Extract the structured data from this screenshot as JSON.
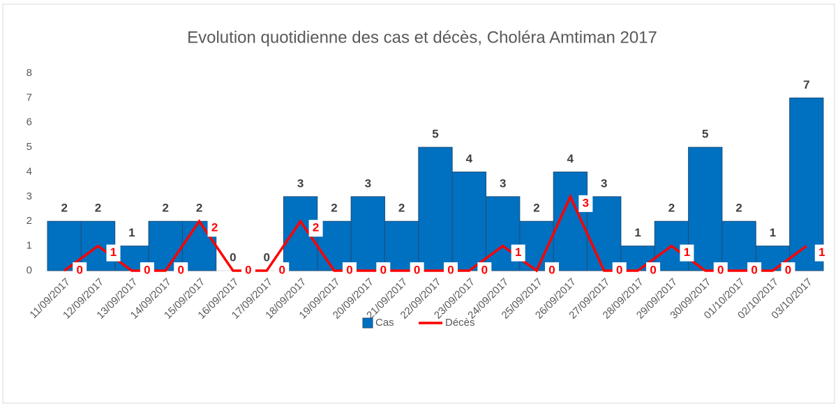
{
  "chart_data": {
    "type": "bar",
    "title": "Evolution quotidienne des cas et décès, Choléra Amtiman 2017",
    "categories": [
      "11/09/2017",
      "12/09/2017",
      "13/09/2017",
      "14/09/2017",
      "15/09/2017",
      "16/09/2017",
      "17/09/2017",
      "18/09/2017",
      "19/09/2017",
      "20/09/2017",
      "21/09/2017",
      "22/09/2017",
      "23/09/2017",
      "24/09/2017",
      "25/09/2017",
      "26/09/2017",
      "27/09/2017",
      "28/09/2017",
      "29/09/2017",
      "30/09/2017",
      "01/10/2017",
      "02/10/2017",
      "03/10/2017"
    ],
    "series": [
      {
        "name": "Cas",
        "type": "bar",
        "color": "#0070c0",
        "values": [
          2,
          2,
          1,
          2,
          2,
          0,
          0,
          3,
          2,
          3,
          2,
          5,
          4,
          3,
          2,
          4,
          3,
          1,
          2,
          5,
          2,
          1,
          7
        ]
      },
      {
        "name": "Décès",
        "type": "line",
        "color": "#ff0000",
        "values": [
          0,
          1,
          0,
          0,
          2,
          0,
          0,
          2,
          0,
          0,
          0,
          0,
          0,
          1,
          0,
          3,
          0,
          0,
          1,
          0,
          0,
          0,
          1
        ]
      }
    ],
    "ylim": [
      0,
      8
    ],
    "yticks": [
      0,
      1,
      2,
      3,
      4,
      5,
      6,
      7,
      8
    ],
    "grid": false,
    "legend": "bottom"
  }
}
